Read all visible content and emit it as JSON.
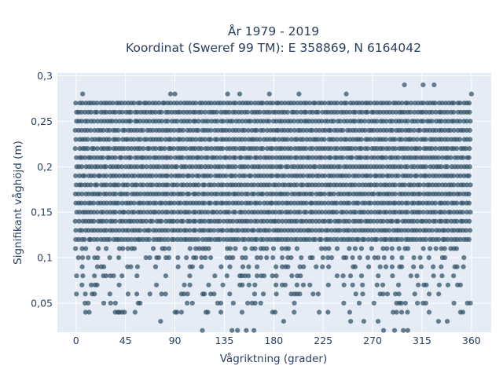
{
  "chart_data": {
    "type": "scatter",
    "title": "År 1979 - 2019",
    "subtitle": "Koordinat (Sweref 99 TM): E 358869, N 6164042",
    "xlabel": "Vågriktning (grader)",
    "ylabel": "Signifikant våghöjd (m)",
    "xlim": [
      -17,
      378
    ],
    "ylim": [
      0.018,
      0.303
    ],
    "x_ticks": [
      0,
      45,
      90,
      135,
      180,
      225,
      270,
      315,
      360
    ],
    "x_tick_labels": [
      "0",
      "45",
      "90",
      "135",
      "180",
      "225",
      "270",
      "315",
      "360"
    ],
    "y_ticks": [
      0.05,
      0.1,
      0.15,
      0.2,
      0.25,
      0.3
    ],
    "y_tick_labels": [
      "0,05",
      "0,1",
      "0,15",
      "0,2",
      "0,25",
      "0,3"
    ],
    "grid": true,
    "legend": "none",
    "marker_color": "#2f5166",
    "plot_background": "#e5ecf6",
    "sample_points": [
      {
        "x": 6,
        "y": 0.28
      },
      {
        "x": 86,
        "y": 0.28
      },
      {
        "x": 90,
        "y": 0.28
      },
      {
        "x": 138,
        "y": 0.28
      },
      {
        "x": 149,
        "y": 0.28
      },
      {
        "x": 176,
        "y": 0.28
      },
      {
        "x": 203,
        "y": 0.28
      },
      {
        "x": 246,
        "y": 0.28
      },
      {
        "x": 299,
        "y": 0.29
      },
      {
        "x": 316,
        "y": 0.29
      },
      {
        "x": 326,
        "y": 0.29
      },
      {
        "x": 360,
        "y": 0.28
      },
      {
        "x": 115,
        "y": 0.02
      },
      {
        "x": 142,
        "y": 0.02
      },
      {
        "x": 147,
        "y": 0.02
      },
      {
        "x": 155,
        "y": 0.02
      },
      {
        "x": 162,
        "y": 0.02
      },
      {
        "x": 280,
        "y": 0.02
      },
      {
        "x": 290,
        "y": 0.02
      },
      {
        "x": 298,
        "y": 0.02
      },
      {
        "x": 302,
        "y": 0.02
      },
      {
        "x": 12,
        "y": 0.04
      },
      {
        "x": 38,
        "y": 0.04
      },
      {
        "x": 77,
        "y": 0.03
      },
      {
        "x": 96,
        "y": 0.04
      },
      {
        "x": 120,
        "y": 0.04
      },
      {
        "x": 189,
        "y": 0.03
      },
      {
        "x": 250,
        "y": 0.03
      },
      {
        "x": 262,
        "y": 0.03
      },
      {
        "x": 275,
        "y": 0.03
      },
      {
        "x": 330,
        "y": 0.03
      },
      {
        "x": 338,
        "y": 0.03
      },
      {
        "x": 350,
        "y": 0.04
      }
    ],
    "dense_rows": [
      {
        "y": 0.27,
        "x_range": [
          0,
          360
        ]
      },
      {
        "y": 0.26,
        "x_range": [
          0,
          360
        ]
      },
      {
        "y": 0.25,
        "x_range": [
          0,
          360
        ]
      },
      {
        "y": 0.24,
        "x_range": [
          0,
          360
        ]
      },
      {
        "y": 0.23,
        "x_range": [
          0,
          360
        ]
      },
      {
        "y": 0.22,
        "x_range": [
          0,
          360
        ]
      },
      {
        "y": 0.21,
        "x_range": [
          0,
          360
        ]
      },
      {
        "y": 0.2,
        "x_range": [
          0,
          360
        ]
      },
      {
        "y": 0.19,
        "x_range": [
          0,
          360
        ]
      },
      {
        "y": 0.18,
        "x_range": [
          0,
          360
        ]
      },
      {
        "y": 0.17,
        "x_range": [
          0,
          360
        ]
      },
      {
        "y": 0.16,
        "x_range": [
          0,
          360
        ]
      },
      {
        "y": 0.15,
        "x_range": [
          0,
          360
        ]
      },
      {
        "y": 0.14,
        "x_range": [
          0,
          360
        ]
      },
      {
        "y": 0.13,
        "x_range": [
          0,
          360
        ]
      },
      {
        "y": 0.12,
        "x_range": [
          0,
          360
        ]
      },
      {
        "y": 0.11,
        "x_range": [
          0,
          360
        ]
      },
      {
        "y": 0.1,
        "x_range": [
          0,
          360
        ]
      },
      {
        "y": 0.09,
        "x_range": [
          0,
          360
        ]
      },
      {
        "y": 0.08,
        "x_range": [
          0,
          360
        ]
      },
      {
        "y": 0.07,
        "x_range": [
          0,
          360
        ]
      },
      {
        "y": 0.06,
        "x_range": [
          0,
          360
        ]
      },
      {
        "y": 0.05,
        "x_range": [
          0,
          360
        ]
      },
      {
        "y": 0.04,
        "x_range": [
          0,
          360
        ]
      }
    ]
  }
}
